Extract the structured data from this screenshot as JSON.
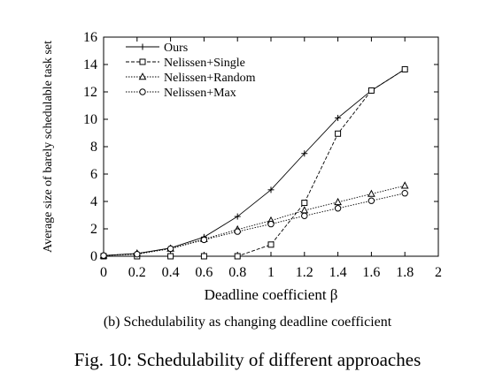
{
  "chart_data": {
    "type": "line",
    "xlabel": "Deadline coefficient β",
    "ylabel": "Average size of barely schedulable task set",
    "xlim": [
      0,
      2
    ],
    "ylim": [
      0,
      16
    ],
    "xticks": [
      0,
      0.2,
      0.4,
      0.6,
      0.8,
      1,
      1.2,
      1.4,
      1.6,
      1.8,
      2
    ],
    "xtick_labels": [
      "0",
      "0.2",
      "0.4",
      "0.6",
      "0.8",
      "1",
      "1.2",
      "1.4",
      "1.6",
      "1.8",
      "2"
    ],
    "yticks": [
      0,
      2,
      4,
      6,
      8,
      10,
      12,
      14,
      16
    ],
    "ytick_labels": [
      "0",
      "2",
      "4",
      "6",
      "8",
      "10",
      "12",
      "14",
      "16"
    ],
    "grid": false,
    "legend_position": "top-left",
    "x": [
      0,
      0.2,
      0.4,
      0.6,
      0.8,
      1.0,
      1.2,
      1.4,
      1.6,
      1.8
    ],
    "series": [
      {
        "name": "Ours",
        "marker": "plus",
        "dash": "solid",
        "values": [
          0.05,
          0.2,
          0.6,
          1.4,
          2.9,
          4.85,
          7.5,
          10.1,
          12.1,
          13.65
        ]
      },
      {
        "name": "Nelissen+Single",
        "marker": "square",
        "dash": "dashed",
        "values": [
          0.0,
          0.0,
          0.0,
          0.0,
          0.0,
          0.85,
          3.9,
          8.95,
          12.1,
          13.65
        ]
      },
      {
        "name": "Nelissen+Random",
        "marker": "triangle",
        "dash": "dotted",
        "values": [
          0.05,
          0.2,
          0.55,
          1.25,
          1.95,
          2.6,
          3.35,
          3.95,
          4.55,
          5.15
        ]
      },
      {
        "name": "Nelissen+Max",
        "marker": "circle",
        "dash": "dotted",
        "values": [
          0.05,
          0.15,
          0.55,
          1.2,
          1.8,
          2.35,
          2.95,
          3.5,
          4.05,
          4.6
        ]
      }
    ]
  },
  "captions": {
    "subcaption": "(b) Schedulability as changing deadline coefficient",
    "figcaption": "Fig. 10: Schedulability of different approaches"
  }
}
